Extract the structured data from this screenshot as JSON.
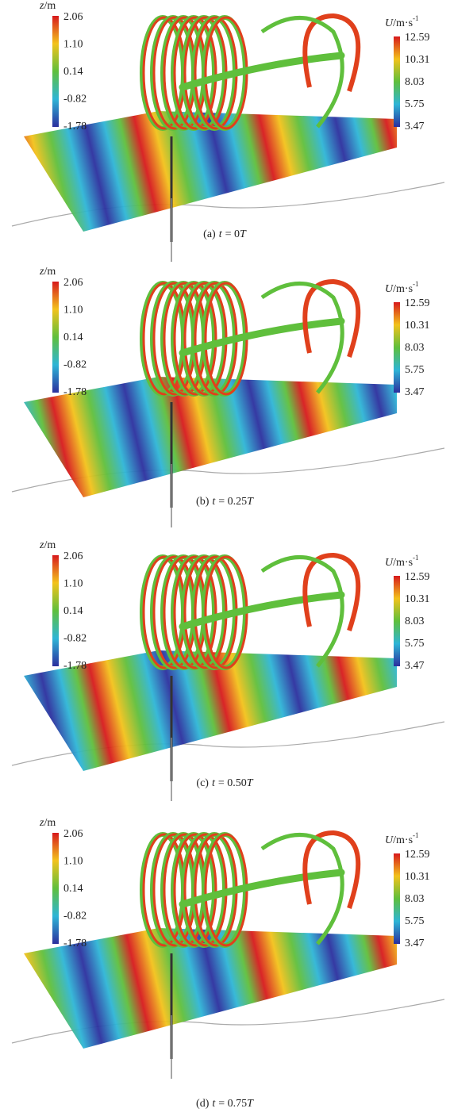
{
  "panels": [
    {
      "z_bar": {
        "symbol": "z",
        "unit": "/m",
        "ticks": [
          "2.06",
          "1.10",
          "0.14",
          "-0.82",
          "-1.78"
        ]
      },
      "u_bar": {
        "symbol": "U",
        "unit": "/m·s",
        "exponent": "-1",
        "ticks": [
          "12.59",
          "10.31",
          "8.03",
          "5.75",
          "3.47"
        ]
      },
      "caption": {
        "label": "(a)",
        "var": "t",
        "value": "= 0",
        "period": "T"
      }
    },
    {
      "z_bar": {
        "symbol": "z",
        "unit": "/m",
        "ticks": [
          "2.06",
          "1.10",
          "0.14",
          "-0.82",
          "-1.78"
        ]
      },
      "u_bar": {
        "symbol": "U",
        "unit": "/m·s",
        "exponent": "-1",
        "ticks": [
          "12.59",
          "10.31",
          "8.03",
          "5.75",
          "3.47"
        ]
      },
      "caption": {
        "label": "(b)",
        "var": "t",
        "value": "= 0.25",
        "period": "T"
      }
    },
    {
      "z_bar": {
        "symbol": "z",
        "unit": "/m",
        "ticks": [
          "2.06",
          "1.10",
          "0.14",
          "-0.82",
          "-1.78"
        ]
      },
      "u_bar": {
        "symbol": "U",
        "unit": "/m·s",
        "exponent": "-1",
        "ticks": [
          "12.59",
          "10.31",
          "8.03",
          "5.75",
          "3.47"
        ]
      },
      "caption": {
        "label": "(c)",
        "var": "t",
        "value": "= 0.50",
        "period": "T"
      }
    },
    {
      "z_bar": {
        "symbol": "z",
        "unit": "/m",
        "ticks": [
          "2.06",
          "1.10",
          "0.14",
          "-0.82",
          "-1.78"
        ]
      },
      "u_bar": {
        "symbol": "U",
        "unit": "/m·s",
        "exponent": "-1",
        "ticks": [
          "12.59",
          "10.31",
          "8.03",
          "5.75",
          "3.47"
        ]
      },
      "caption": {
        "label": "(d)",
        "var": "t",
        "value": "= 0.75",
        "period": "T"
      }
    }
  ]
}
